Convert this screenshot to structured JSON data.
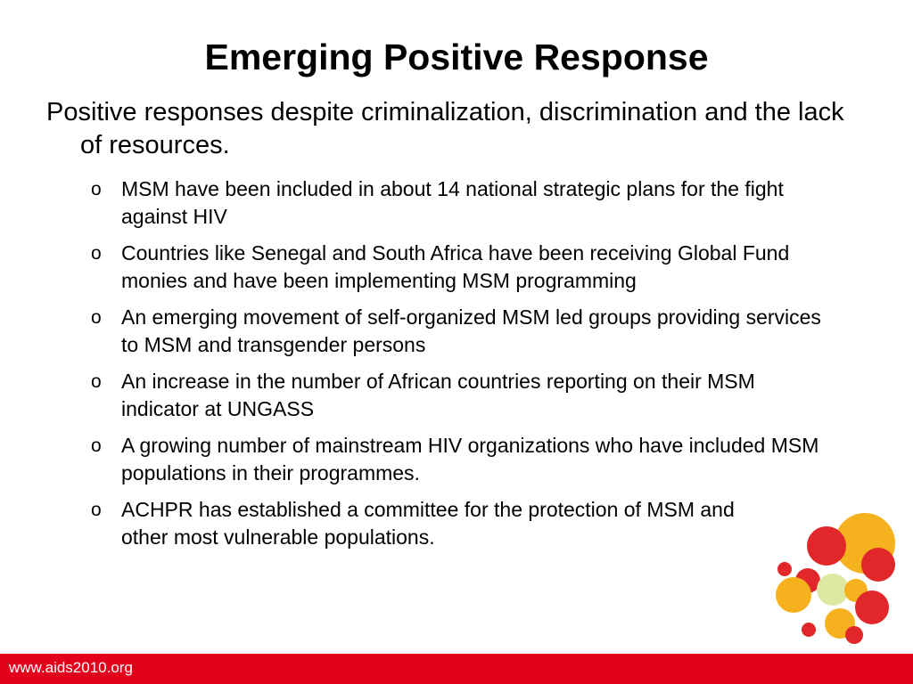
{
  "slide": {
    "title": "Emerging Positive Response",
    "intro": "Positive responses despite criminalization, discrimination and the lack of resources.",
    "bullet_marker": "o",
    "bullets": [
      "MSM have been included in about 14 national strategic plans for the fight against HIV",
      "Countries like Senegal and South Africa have been receiving Global Fund monies and have been implementing MSM programming",
      "An emerging movement of self-organized MSM led groups providing services to MSM and transgender persons",
      "An increase in the number of African countries reporting on their MSM indicator at UNGASS",
      "A growing number of mainstream HIV organizations who have included MSM populations in their programmes.",
      "ACHPR has established a committee for the protection of MSM and other most vulnerable populations."
    ]
  },
  "footer": {
    "url": "www.aids2010.org",
    "color": "#e2001a"
  },
  "logo": {
    "icon": "colored-circles-logo-icon",
    "colors": {
      "red": "#e2272a",
      "orange": "#f5b21e",
      "light_green": "#dfe8a3"
    }
  }
}
